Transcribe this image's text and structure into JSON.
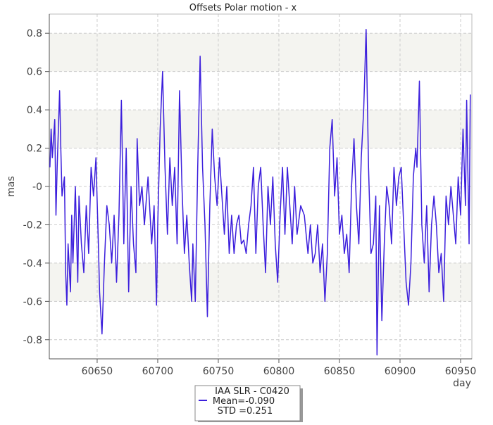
{
  "chart_data": {
    "type": "line",
    "title": "Offsets Polar motion - x",
    "x_label": "day",
    "y_label": "mas",
    "xlim": [
      60610.5,
      60959.3
    ],
    "ylim": [
      -0.9,
      0.9
    ],
    "xticks": [
      60650,
      60700,
      60750,
      60800,
      60850,
      60900,
      60950
    ],
    "yticks": [
      -0.8,
      -0.6,
      -0.4,
      -0.2,
      {
        "value": 0,
        "label": "-0"
      },
      0.2,
      0.4,
      0.6,
      0.8
    ],
    "grid": true,
    "series": [
      {
        "name": "IAA SLR - C0420",
        "color": "#3c1fdc",
        "x": [
          60611,
          60612,
          60613,
          60615,
          60616,
          60617,
          60619,
          60620,
          60621,
          60623,
          60624,
          60625,
          60626,
          60628,
          60629,
          60630,
          60632,
          60634,
          60635,
          60637,
          60639,
          60641,
          60643,
          60645,
          60647,
          60649,
          60651,
          60652,
          60654,
          60656,
          60658,
          60660,
          60662,
          60664,
          60666,
          60668,
          60670,
          60672,
          60674,
          60676,
          60678,
          60680,
          60682,
          60683,
          60685,
          60687,
          60689,
          60692,
          60695,
          60697,
          60699,
          60700,
          60702,
          60704,
          60706,
          60708,
          60710,
          60712,
          60714,
          60716,
          60718,
          60720,
          60722,
          60724,
          60726,
          60728,
          60729,
          60731,
          60733,
          60735,
          60737,
          60739,
          60741,
          60743,
          60745,
          60747,
          60749,
          60751,
          60753,
          60755,
          60757,
          60759,
          60761,
          60763,
          60765,
          60767,
          60769,
          60771,
          60773,
          60775,
          60777,
          60779,
          60781,
          60783,
          60785,
          60787,
          60789,
          60791,
          60793,
          60795,
          60797,
          60799,
          60801,
          60803,
          60805,
          60807,
          60809,
          60811,
          60813,
          60815,
          60818,
          60821,
          60824,
          60826,
          60828,
          60830,
          60832,
          60834,
          60836,
          60838,
          60840,
          60842,
          60844,
          60846,
          60848,
          60850,
          60852,
          60854,
          60856,
          60858,
          60860,
          60862,
          60864,
          60866,
          60868,
          60870,
          60872,
          60874,
          60876,
          60878,
          60880,
          60881,
          60883,
          60885,
          60887,
          60889,
          60891,
          60893,
          60895,
          60897,
          60899,
          60901,
          60903,
          60905,
          60907,
          60909,
          60911,
          60913,
          60914,
          60916,
          60918,
          60920,
          60922,
          60924,
          60926,
          60928,
          60930,
          60932,
          60934,
          60936,
          60938,
          60940,
          60942,
          60944,
          60946,
          60948,
          60950,
          60952,
          60954,
          60955,
          60957,
          60958
        ],
        "values": [
          0.1,
          0.3,
          0.15,
          0.35,
          -0.15,
          0.1,
          0.5,
          0.2,
          -0.05,
          0.05,
          -0.45,
          -0.62,
          -0.3,
          -0.55,
          -0.15,
          -0.4,
          0.0,
          -0.5,
          -0.05,
          -0.3,
          -0.45,
          -0.1,
          -0.35,
          0.1,
          -0.05,
          0.15,
          -0.3,
          -0.55,
          -0.77,
          -0.4,
          -0.1,
          -0.2,
          -0.4,
          -0.15,
          -0.5,
          -0.15,
          0.45,
          -0.3,
          0.2,
          -0.55,
          0.0,
          -0.3,
          -0.45,
          0.25,
          -0.1,
          0.0,
          -0.2,
          0.05,
          -0.3,
          -0.1,
          -0.62,
          -0.2,
          0.3,
          0.6,
          0.1,
          -0.25,
          0.15,
          -0.1,
          0.1,
          -0.3,
          0.5,
          0.0,
          -0.35,
          -0.15,
          -0.4,
          -0.6,
          -0.3,
          -0.6,
          0.1,
          0.68,
          0.1,
          -0.2,
          -0.68,
          -0.1,
          0.3,
          0.05,
          -0.1,
          0.15,
          -0.05,
          -0.25,
          0.0,
          -0.35,
          -0.15,
          -0.35,
          -0.2,
          -0.15,
          -0.3,
          -0.28,
          -0.35,
          -0.2,
          -0.1,
          0.1,
          -0.35,
          0.0,
          0.1,
          -0.2,
          -0.45,
          0.0,
          -0.2,
          0.05,
          -0.3,
          -0.5,
          -0.15,
          0.1,
          -0.25,
          0.1,
          -0.1,
          -0.3,
          0.0,
          -0.25,
          -0.1,
          -0.15,
          -0.35,
          -0.2,
          -0.4,
          -0.35,
          -0.2,
          -0.45,
          -0.3,
          -0.6,
          -0.35,
          0.2,
          0.35,
          -0.05,
          0.15,
          -0.25,
          -0.15,
          -0.35,
          -0.25,
          -0.45,
          0.0,
          0.25,
          -0.1,
          -0.3,
          0.15,
          0.4,
          0.82,
          0.1,
          -0.35,
          -0.3,
          -0.05,
          -0.88,
          -0.1,
          -0.7,
          -0.3,
          0.0,
          -0.1,
          -0.3,
          0.1,
          -0.1,
          0.05,
          0.1,
          -0.2,
          -0.5,
          -0.62,
          -0.4,
          0.05,
          0.2,
          0.1,
          0.55,
          -0.2,
          -0.4,
          -0.1,
          -0.55,
          -0.2,
          -0.05,
          -0.2,
          -0.45,
          -0.35,
          -0.6,
          -0.05,
          -0.2,
          0.0,
          -0.15,
          -0.3,
          0.05,
          -0.15,
          0.3,
          -0.1,
          0.45,
          -0.3,
          0.48
        ]
      }
    ],
    "annotations": [
      "Mean=-0.090",
      "STD =0.251"
    ]
  }
}
